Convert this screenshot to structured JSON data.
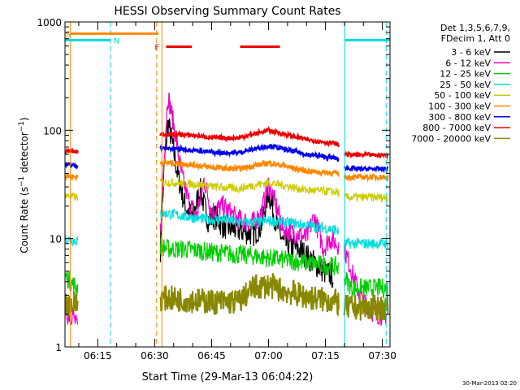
{
  "chart_data": {
    "type": "line",
    "title": "HESSI Observing Summary Count Rates",
    "xlabel": "Start Time (29-Mar-13 06:04:22)",
    "ylabel": "Count Rate (s⁻¹ detector⁻¹)",
    "y_scale": "log",
    "ylim": [
      1,
      1000
    ],
    "xlim_minutes": [
      6.37,
      92.0
    ],
    "x_ticks": [
      {
        "label": "06:15",
        "t": 15
      },
      {
        "label": "06:30",
        "t": 30
      },
      {
        "label": "06:45",
        "t": 45
      },
      {
        "label": "07:00",
        "t": 60
      },
      {
        "label": "07:15",
        "t": 75
      },
      {
        "label": "07:30",
        "t": 90
      }
    ],
    "y_ticks": [
      {
        "label": "1",
        "v": 1
      },
      {
        "label": "10",
        "v": 10
      },
      {
        "label": "100",
        "v": 100
      },
      {
        "label": "1000",
        "v": 1000
      }
    ],
    "legend": {
      "header": [
        "Det 1,3,5,6,7,9,",
        "FDecim 1, Att 0"
      ],
      "placement": "right"
    },
    "series": [
      {
        "name": "3 - 6 keV",
        "color": "#000000",
        "x": [
          31.5,
          32.5,
          33.5,
          34.5,
          36,
          38,
          40,
          42,
          44,
          46,
          48,
          52,
          56,
          58,
          60,
          62,
          64,
          68,
          72,
          74.5,
          77
        ],
        "y": [
          8,
          45,
          120,
          80,
          40,
          20,
          16,
          28,
          15,
          16,
          13,
          12,
          11,
          13,
          27,
          14,
          9,
          8,
          6,
          5,
          4.5
        ]
      },
      {
        "name": "6 - 12 keV",
        "color": "#ee00cc",
        "x": [
          6.5,
          8.5,
          9.5,
          31.5,
          32.5,
          33.5,
          34.5,
          35.5,
          37,
          39,
          41,
          43,
          45,
          48,
          52,
          56,
          58,
          60,
          62,
          64,
          68,
          70,
          72,
          74.5,
          76,
          78,
          80,
          84,
          88,
          91.5
        ],
        "y": [
          2,
          2,
          1.5,
          12,
          60,
          210,
          140,
          90,
          40,
          22,
          16,
          35,
          18,
          20,
          15,
          14,
          17,
          32,
          20,
          12,
          11,
          10,
          16,
          8,
          10,
          9,
          8,
          3,
          2,
          2
        ]
      },
      {
        "name": "12 - 25 keV",
        "color": "#00cc00",
        "x": [
          6.5,
          9.5,
          31.5,
          34,
          38,
          45,
          55,
          62,
          70,
          78,
          82,
          86,
          91.5
        ],
        "y": [
          4.5,
          3.5,
          8.5,
          8,
          8,
          7.5,
          7,
          6.5,
          6,
          5.5,
          3.5,
          3.5,
          3.5
        ]
      },
      {
        "name": "25 - 50 keV",
        "color": "#00dddd",
        "x": [
          6.5,
          9.5,
          31.5,
          34,
          38,
          44,
          48,
          54,
          60,
          66,
          72,
          78,
          80,
          84,
          88,
          91.5
        ],
        "y": [
          10,
          9.5,
          17,
          17,
          16,
          15,
          15,
          14,
          14.5,
          14,
          13,
          12,
          9,
          9,
          9,
          9
        ]
      },
      {
        "name": "50 - 100 keV",
        "color": "#cccc00",
        "x": [
          6.5,
          9.5,
          31.5,
          34,
          40,
          46,
          52,
          56,
          60,
          64,
          70,
          78,
          80,
          84,
          88,
          91.5
        ],
        "y": [
          25,
          24,
          33,
          33,
          32,
          30,
          29,
          31,
          33,
          31,
          28,
          27,
          24,
          24,
          24,
          24
        ]
      },
      {
        "name": "100 - 300 keV",
        "color": "#ff8800",
        "x": [
          6.5,
          9.5,
          31.5,
          34,
          40,
          46,
          52,
          56,
          60,
          64,
          70,
          78,
          80,
          84,
          88,
          91.5
        ],
        "y": [
          38,
          37,
          50,
          50,
          48,
          45,
          44,
          47,
          50,
          47,
          42,
          40,
          37,
          37,
          37,
          37
        ]
      },
      {
        "name": "300 - 800 keV",
        "color": "#0000ee",
        "x": [
          6.5,
          9.5,
          31.5,
          34,
          40,
          46,
          52,
          56,
          60,
          64,
          70,
          78,
          80,
          84,
          88,
          91.5
        ],
        "y": [
          48,
          47,
          68,
          68,
          66,
          62,
          62,
          67,
          72,
          67,
          60,
          55,
          45,
          44,
          44,
          44
        ]
      },
      {
        "name": "800 - 7000 keV",
        "color": "#ee0000",
        "x": [
          6.5,
          9.5,
          31.5,
          34,
          40,
          46,
          52,
          56,
          60,
          64,
          70,
          78,
          80,
          84,
          88,
          91.5
        ],
        "y": [
          65,
          63,
          92,
          92,
          90,
          85,
          85,
          92,
          100,
          93,
          82,
          75,
          60,
          59,
          59,
          59
        ]
      },
      {
        "name": "7000 - 20000 keV",
        "color": "#888800",
        "x": [
          6.5,
          9.5,
          31.5,
          34,
          40,
          46,
          52,
          56,
          60,
          64,
          70,
          78,
          80,
          84,
          88,
          91.5
        ],
        "y": [
          2.5,
          2.5,
          2.8,
          2.8,
          2.7,
          2.6,
          2.6,
          3.5,
          3.7,
          3.3,
          2.9,
          2.6,
          2.3,
          2.3,
          2.3,
          2.3
        ]
      }
    ],
    "annotations": {
      "S": {
        "label": "S",
        "color": "#ff8800",
        "x_start": 7.8,
        "x_end": 31.0,
        "y": 780
      },
      "N": {
        "label": "N",
        "color": "#00dddd",
        "x_start": 6.37,
        "x_end": 18.3,
        "y": 680
      },
      "F": {
        "label": "F",
        "color": "#ee0000",
        "segments": [
          [
            33.0,
            39.8
          ],
          [
            52.5,
            63.0
          ]
        ],
        "y": 590
      },
      "night_right": {
        "color": "#00dddd",
        "x_start": 80.1,
        "x_end": 92.0,
        "y": 680
      },
      "vlines": [
        {
          "t": 7.8,
          "color": "#ff8800",
          "dash": false
        },
        {
          "t": 18.3,
          "color": "#00dddd",
          "dash": true
        },
        {
          "t": 30.5,
          "color": "#ff8800",
          "dash": true
        },
        {
          "t": 31.9,
          "color": "#ff8800",
          "dash": false
        },
        {
          "t": 80.1,
          "color": "#00dddd",
          "dash": false
        },
        {
          "t": 91.0,
          "color": "#00dddd",
          "dash": true
        }
      ]
    },
    "footer_timestamp": "30-Mar-2013 02:20"
  }
}
